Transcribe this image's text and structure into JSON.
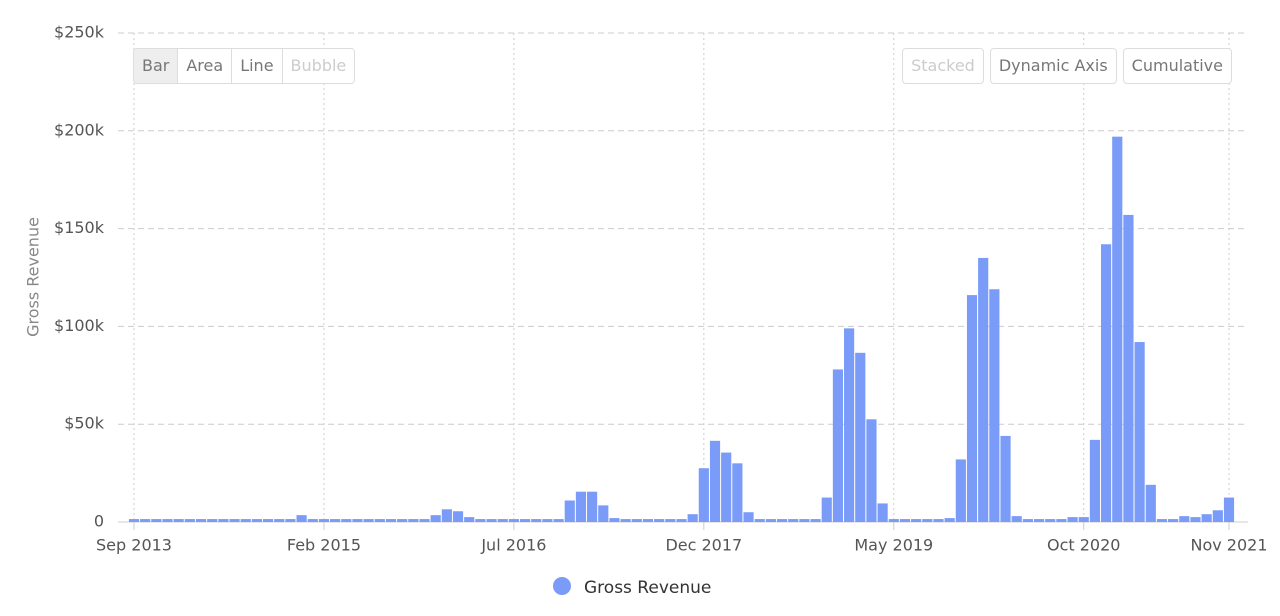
{
  "chart_data": {
    "type": "bar",
    "y_label": "Gross Revenue",
    "color": "#7a9cf8",
    "grid": true,
    "legend": "bottom",
    "series": [
      {
        "name": "Gross Revenue",
        "color": "#7a9cf8",
        "values": [
          1500,
          1500,
          1500,
          1500,
          1500,
          1500,
          1500,
          1500,
          1500,
          1500,
          1500,
          1500,
          1500,
          1500,
          1500,
          3500,
          1500,
          1500,
          1500,
          1500,
          1500,
          1500,
          1500,
          1500,
          1500,
          1500,
          1500,
          3500,
          6500,
          5500,
          2500,
          1500,
          1500,
          1500,
          1500,
          1500,
          1500,
          1500,
          1500,
          11000,
          15500,
          15500,
          8500,
          2000,
          1500,
          1500,
          1500,
          1500,
          1500,
          1500,
          4000,
          27500,
          41500,
          35500,
          30000,
          5000,
          1500,
          1500,
          1500,
          1500,
          1500,
          1500,
          12500,
          78000,
          99000,
          86500,
          52500,
          9500,
          1500,
          1500,
          1500,
          1500,
          1500,
          2000,
          32000,
          116000,
          135000,
          119000,
          44000,
          3000,
          1500,
          1500,
          1500,
          1500,
          2500,
          2500,
          42000,
          142000,
          197000,
          157000,
          92000,
          19000,
          1500,
          1500,
          3000,
          2500,
          4000,
          6000,
          12500
        ]
      }
    ],
    "categories": [
      "Sep 2013",
      null,
      null,
      null,
      null,
      null,
      null,
      null,
      null,
      null,
      null,
      null,
      null,
      null,
      null,
      null,
      null,
      "Feb 2015",
      null,
      null,
      null,
      null,
      null,
      null,
      null,
      null,
      null,
      null,
      null,
      null,
      null,
      null,
      null,
      null,
      "Jul 2016",
      null,
      null,
      null,
      null,
      null,
      null,
      null,
      null,
      null,
      null,
      null,
      null,
      null,
      null,
      null,
      null,
      "Dec 2017",
      null,
      null,
      null,
      null,
      null,
      null,
      null,
      null,
      null,
      null,
      null,
      null,
      null,
      null,
      null,
      null,
      "May 2019",
      null,
      null,
      null,
      null,
      null,
      null,
      null,
      null,
      null,
      null,
      null,
      null,
      null,
      null,
      null,
      null,
      "Oct 2020",
      null,
      null,
      null,
      null,
      null,
      null,
      null,
      null,
      null,
      null,
      null,
      null,
      "Nov 2021"
    ],
    "ylim": [
      0,
      250000
    ],
    "yticks": [
      0,
      {
        "value": 50000,
        "label": "$50k"
      },
      {
        "value": 100000,
        "label": "$100k"
      },
      {
        "value": 150000,
        "label": "$150k"
      },
      {
        "value": 200000,
        "label": "$200k"
      },
      {
        "value": 250000,
        "label": "$250k"
      }
    ],
    "buttons_left": [
      "Bar",
      "Area",
      "Line",
      "Bubble"
    ],
    "buttons_right": [
      "Stacked",
      "Dynamic Axis",
      "Cumulative"
    ]
  }
}
